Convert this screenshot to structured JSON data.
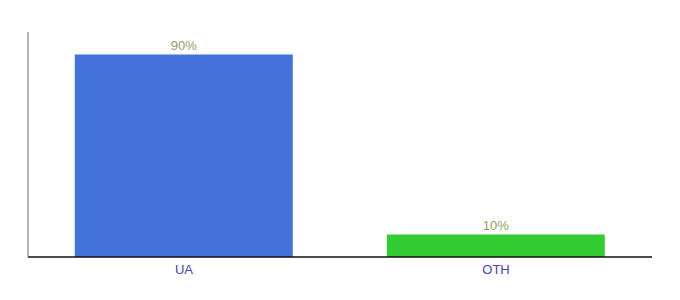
{
  "chart_data": {
    "type": "bar",
    "categories": [
      "UA",
      "OTH"
    ],
    "values": [
      90,
      10
    ],
    "value_labels": [
      "90%",
      "10%"
    ],
    "colors": [
      "#4472db",
      "#33cc33"
    ],
    "ylim": [
      0,
      100
    ],
    "data_labels": true,
    "tick_labels": "x",
    "grid": false
  }
}
